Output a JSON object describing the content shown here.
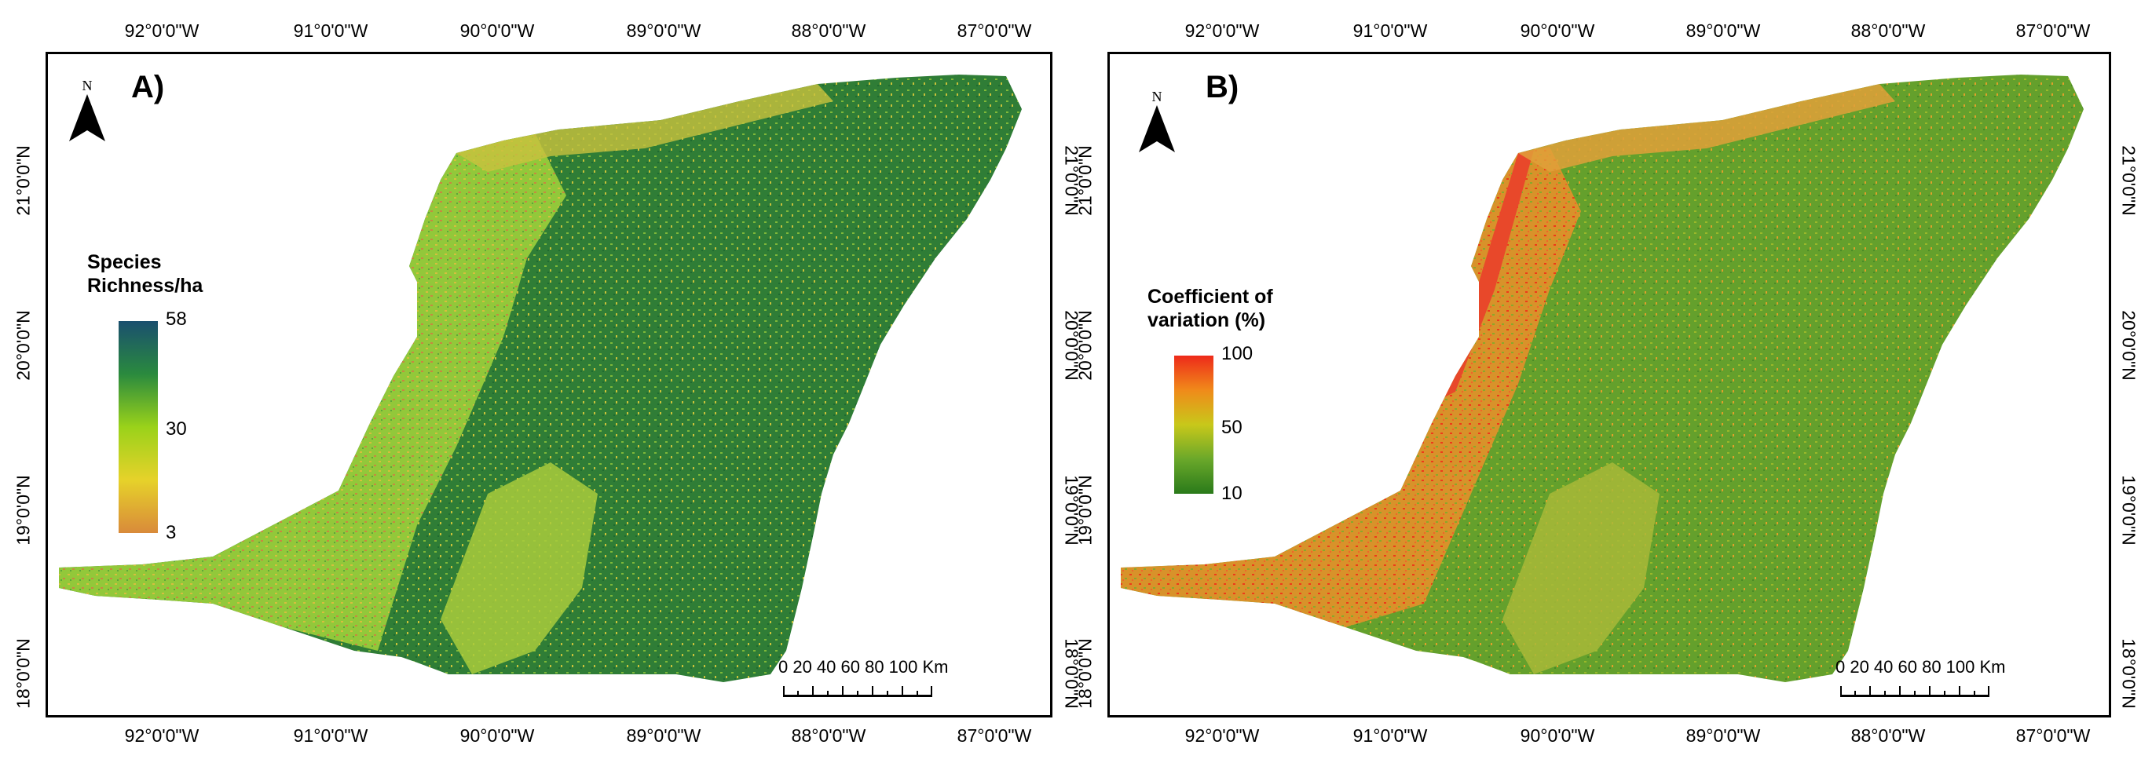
{
  "panels": [
    {
      "label": "A)",
      "north_letter": "N",
      "legend": {
        "title_line1": "Species",
        "title_line2": "Richness/ha",
        "max": "58",
        "mid": "30",
        "min": "3",
        "colors": [
          "#1a4f6f",
          "#2a8a3e",
          "#9ad21a",
          "#e6d22a",
          "#d98a3a"
        ]
      },
      "scale": {
        "labels": "0  20  40  60  80 100 Km"
      }
    },
    {
      "label": "B)",
      "north_letter": "N",
      "legend": {
        "title_line1": "Coefficient  of",
        "title_line2": "variation  (%)",
        "max": "100",
        "mid": "50",
        "min": "10",
        "colors": [
          "#ee2a1a",
          "#f08a1a",
          "#c8c81a",
          "#6aa82a",
          "#2a7a1a"
        ]
      },
      "scale": {
        "labels": "0  20  40  60  80 100 Km"
      }
    }
  ],
  "axes": {
    "lon_labels": [
      "92°0'0\"W",
      "91°0'0\"W",
      "90°0'0\"W",
      "89°0'0\"W",
      "88°0'0\"W",
      "87°0'0\"W"
    ],
    "lat_labels": [
      "21°0'0\"N",
      "20°0'0\"N",
      "19°0'0\"N",
      "18°0'0\"N"
    ]
  },
  "map_colors": {
    "a": {
      "east": "#2e7a34",
      "center": "#3d8e3a",
      "west": "#8cc43a",
      "coast": "#d8c34a",
      "light": "#b8d53a",
      "south": "#a8cc3a"
    },
    "b": {
      "east": "#5e9a2a",
      "center": "#6ea02a",
      "west": "#d8842a",
      "coast": "#e8502a",
      "light": "#9ab42a",
      "south": "#a6b836"
    }
  }
}
